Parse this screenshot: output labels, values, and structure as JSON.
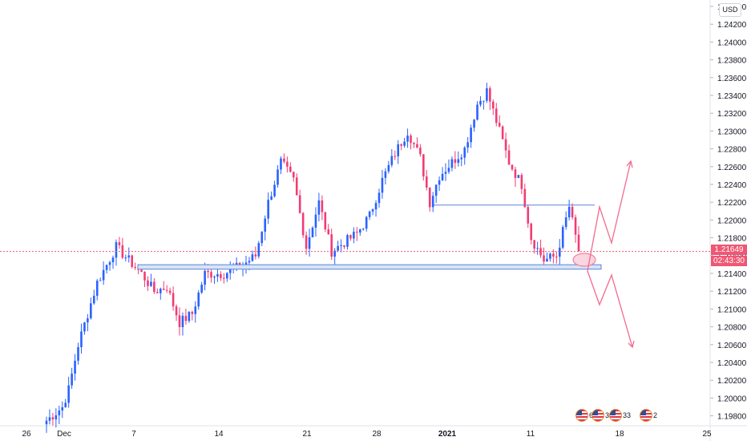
{
  "price_axis": {
    "currency": "USD",
    "ticks": [
      "1.24400",
      "1.24200",
      "1.24000",
      "1.23800",
      "1.23600",
      "1.23400",
      "1.23200",
      "1.23000",
      "1.22800",
      "1.22600",
      "1.22400",
      "1.22200",
      "1.22000",
      "1.21800",
      "1.21600",
      "1.21400",
      "1.21200",
      "1.21000",
      "1.20800",
      "1.20600",
      "1.20400",
      "1.20200",
      "1.20000",
      "1.19800"
    ],
    "current_price": "1.21649",
    "countdown": "02:43:30"
  },
  "time_axis": {
    "labels": [
      "26",
      "Dec",
      "7",
      "14",
      "21",
      "28",
      "2021",
      "11",
      "18",
      "25"
    ]
  },
  "events": [
    {
      "count": "6"
    },
    {
      "count": "32"
    },
    {
      "count": "33"
    },
    {
      "count": "2"
    }
  ],
  "colors": {
    "up": "#2962ff",
    "down": "#f23c74",
    "level_line": "#5c86d6",
    "zone_fill": "#d7e4f7",
    "arrow": "#f36a8f",
    "price_line": "#ef5774"
  },
  "chart_data": {
    "type": "candlestick",
    "symbol_currency": "USD",
    "ylim": [
      1.197,
      1.245
    ],
    "x_labels": [
      "26",
      "Dec",
      "7",
      "14",
      "21",
      "28",
      "2021",
      "11",
      "18",
      "25"
    ],
    "current_price": 1.21649,
    "key_levels": [
      {
        "kind": "resistance-line",
        "price": 1.2217
      },
      {
        "kind": "support-zone",
        "price_low": 1.2145,
        "price_high": 1.215
      }
    ],
    "scenarios": [
      {
        "direction": "up",
        "target": 1.2265
      },
      {
        "direction": "down",
        "target": 1.206
      }
    ],
    "anchors": [
      {
        "i": 0,
        "price": 1.1975
      },
      {
        "i": 5,
        "price": 1.199
      },
      {
        "i": 7,
        "price": 1.201
      },
      {
        "i": 10,
        "price": 1.206
      },
      {
        "i": 16,
        "price": 1.213
      },
      {
        "i": 22,
        "price": 1.217
      },
      {
        "i": 26,
        "price": 1.2155
      },
      {
        "i": 30,
        "price": 1.214
      },
      {
        "i": 34,
        "price": 1.212
      },
      {
        "i": 38,
        "price": 1.2125
      },
      {
        "i": 42,
        "price": 1.2085
      },
      {
        "i": 46,
        "price": 1.2095
      },
      {
        "i": 50,
        "price": 1.214
      },
      {
        "i": 56,
        "price": 1.214
      },
      {
        "i": 62,
        "price": 1.215
      },
      {
        "i": 66,
        "price": 1.216
      },
      {
        "i": 70,
        "price": 1.222
      },
      {
        "i": 74,
        "price": 1.2265
      },
      {
        "i": 78,
        "price": 1.2245
      },
      {
        "i": 82,
        "price": 1.217
      },
      {
        "i": 86,
        "price": 1.222
      },
      {
        "i": 90,
        "price": 1.2165
      },
      {
        "i": 94,
        "price": 1.2175
      },
      {
        "i": 98,
        "price": 1.2185
      },
      {
        "i": 102,
        "price": 1.2205
      },
      {
        "i": 106,
        "price": 1.2245
      },
      {
        "i": 110,
        "price": 1.2275
      },
      {
        "i": 114,
        "price": 1.23
      },
      {
        "i": 118,
        "price": 1.227
      },
      {
        "i": 121,
        "price": 1.222
      },
      {
        "i": 124,
        "price": 1.225
      },
      {
        "i": 128,
        "price": 1.2265
      },
      {
        "i": 132,
        "price": 1.228
      },
      {
        "i": 136,
        "price": 1.233
      },
      {
        "i": 139,
        "price": 1.2345
      },
      {
        "i": 143,
        "price": 1.23
      },
      {
        "i": 146,
        "price": 1.2265
      },
      {
        "i": 150,
        "price": 1.224
      },
      {
        "i": 153,
        "price": 1.218
      },
      {
        "i": 157,
        "price": 1.2155
      },
      {
        "i": 161,
        "price": 1.216
      },
      {
        "i": 165,
        "price": 1.2215
      },
      {
        "i": 168,
        "price": 1.2165
      }
    ]
  }
}
